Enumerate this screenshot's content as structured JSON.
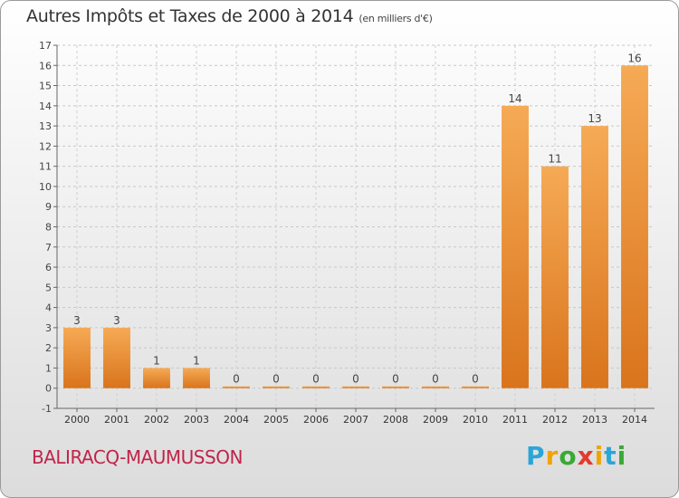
{
  "title": "Autres Impôts et Taxes de 2000 à 2014",
  "title_unit": "(en milliers d'€)",
  "commune": "BALIRACQ-MAUMUSSON",
  "logo": {
    "text": "Proxiti",
    "colors": [
      "#2aa5d8",
      "#f0a400",
      "#3aa935",
      "#e23b2e"
    ]
  },
  "chart_data": {
    "type": "bar",
    "categories": [
      "2000",
      "2001",
      "2002",
      "2003",
      "2004",
      "2005",
      "2006",
      "2007",
      "2008",
      "2009",
      "2010",
      "2011",
      "2012",
      "2013",
      "2014"
    ],
    "values": [
      3,
      3,
      1,
      1,
      0,
      0,
      0,
      0,
      0,
      0,
      0,
      14,
      11,
      13,
      16
    ],
    "data_labels": [
      "3",
      "3",
      "1",
      "1",
      "0",
      "0",
      "0",
      "0",
      "0",
      "0",
      "0",
      "14",
      "11",
      "13",
      "16"
    ],
    "ylim": [
      -1,
      17
    ],
    "yticks": [
      -1,
      0,
      1,
      2,
      3,
      4,
      5,
      6,
      7,
      8,
      9,
      10,
      11,
      12,
      13,
      14,
      15,
      16,
      17
    ],
    "grid": true,
    "bar_color": "#ef8f34"
  }
}
